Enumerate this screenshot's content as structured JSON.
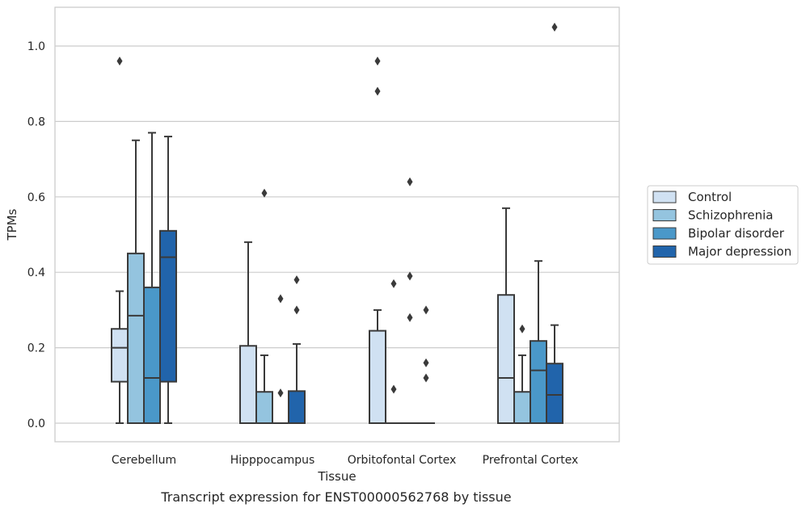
{
  "caption": "Transcript expression for ENST00000562768 by tissue",
  "chart_data": {
    "type": "box",
    "title": "",
    "xlabel": "Tissue",
    "ylabel": "TPMs",
    "ylim": [
      -0.05,
      1.1
    ],
    "yticks": [
      "0.0",
      "0.2",
      "0.4",
      "0.6",
      "0.8",
      "1.0"
    ],
    "grid": "horizontal",
    "legend_position": "right",
    "categories": [
      "Cerebellum",
      "Hipppocampus",
      "Orbitofontal Cortex",
      "Prefrontal Cortex"
    ],
    "series": [
      {
        "name": "Control",
        "color": "#d0e1f2",
        "boxes": [
          {
            "whislo": 0.0,
            "q1": 0.11,
            "med": 0.2,
            "q3": 0.25,
            "whishi": 0.35,
            "fliers": [
              0.96
            ]
          },
          {
            "whislo": 0.0,
            "q1": 0.0,
            "med": 0.0,
            "q3": 0.205,
            "whishi": 0.48,
            "fliers": []
          },
          {
            "whislo": 0.0,
            "q1": 0.0,
            "med": 0.0,
            "q3": 0.245,
            "whishi": 0.3,
            "fliers": [
              0.88,
              0.96
            ]
          },
          {
            "whislo": 0.0,
            "q1": 0.0,
            "med": 0.12,
            "q3": 0.34,
            "whishi": 0.57,
            "fliers": []
          }
        ]
      },
      {
        "name": "Schizophrenia",
        "color": "#94c4df",
        "boxes": [
          {
            "whislo": 0.0,
            "q1": 0.0,
            "med": 0.285,
            "q3": 0.45,
            "whishi": 0.75,
            "fliers": []
          },
          {
            "whislo": 0.0,
            "q1": 0.0,
            "med": 0.0,
            "q3": 0.083,
            "whishi": 0.18,
            "fliers": [
              0.61
            ]
          },
          {
            "whislo": 0.0,
            "q1": 0.0,
            "med": 0.0,
            "q3": 0.0,
            "whishi": 0.0,
            "fliers": [
              0.09,
              0.37
            ]
          },
          {
            "whislo": 0.0,
            "q1": 0.0,
            "med": 0.0,
            "q3": 0.083,
            "whishi": 0.18,
            "fliers": [
              0.25
            ]
          }
        ]
      },
      {
        "name": "Bipolar disorder",
        "color": "#4a98c9",
        "boxes": [
          {
            "whislo": 0.0,
            "q1": 0.0,
            "med": 0.12,
            "q3": 0.36,
            "whishi": 0.77,
            "fliers": []
          },
          {
            "whislo": 0.0,
            "q1": 0.0,
            "med": 0.0,
            "q3": 0.0,
            "whishi": 0.0,
            "fliers": [
              0.08,
              0.33
            ]
          },
          {
            "whislo": 0.0,
            "q1": 0.0,
            "med": 0.0,
            "q3": 0.0,
            "whishi": 0.0,
            "fliers": [
              0.28,
              0.39,
              0.64
            ]
          },
          {
            "whislo": 0.0,
            "q1": 0.0,
            "med": 0.14,
            "q3": 0.218,
            "whishi": 0.43,
            "fliers": []
          }
        ]
      },
      {
        "name": "Major depression",
        "color": "#2164ab",
        "boxes": [
          {
            "whislo": 0.0,
            "q1": 0.11,
            "med": 0.44,
            "q3": 0.51,
            "whishi": 0.76,
            "fliers": []
          },
          {
            "whislo": 0.0,
            "q1": 0.0,
            "med": 0.0,
            "q3": 0.085,
            "whishi": 0.21,
            "fliers": [
              0.3,
              0.38
            ]
          },
          {
            "whislo": 0.0,
            "q1": 0.0,
            "med": 0.0,
            "q3": 0.0,
            "whishi": 0.0,
            "fliers": [
              0.12,
              0.16,
              0.3
            ]
          },
          {
            "whislo": 0.0,
            "q1": 0.0,
            "med": 0.075,
            "q3": 0.158,
            "whishi": 0.26,
            "fliers": [
              1.05
            ]
          }
        ]
      }
    ]
  }
}
